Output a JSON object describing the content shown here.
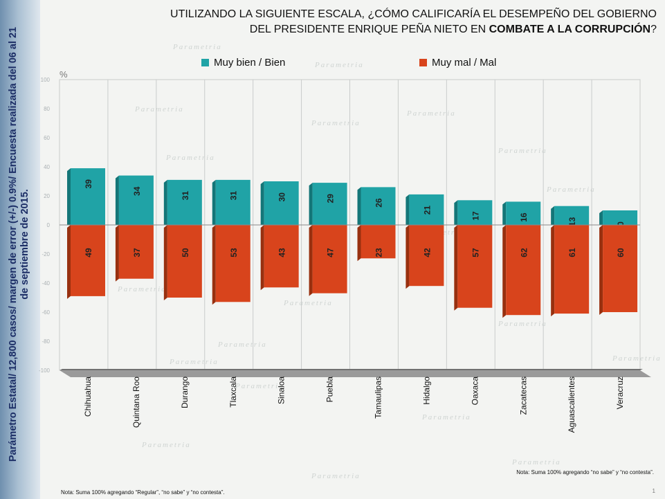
{
  "side_note": "Parámetro Estatal/ 12,800 casos/ margen de error (+/-) 0.9%/ Encuesta realizada del 06 al 21 de septiembre de 2015.",
  "title": {
    "line1": "UTILIZANDO LA SIGUIENTE ESCALA, ¿CÓMO CALIFICARÍA EL DESEMPEÑO DEL GOBIERNO",
    "line2_pre": "DEL PRESIDENTE ENRIQUE PEÑA NIETO EN ",
    "line2_bold": "COMBATE A LA CORRUPCIÓN",
    "line2_post": "?"
  },
  "notes": {
    "right": "Nota: Suma 100%  agregando “no sabe” y “no contesta”.",
    "bottom": "Nota: Suma 100% agregando “Regular”, “no sabe” y “no contesta”."
  },
  "page_number": "1",
  "watermark": "Parametria",
  "colors": {
    "positive": "#20a3a6",
    "positive_dark": "#147678",
    "negative": "#d8441c",
    "negative_dark": "#98300f",
    "floor": "#8a8a8a"
  },
  "chart_data": {
    "type": "bar",
    "title": "UTILIZANDO LA SIGUIENTE ESCALA, ¿CÓMO CALIFICARÍA EL DESEMPEÑO DEL GOBIERNO DEL PRESIDENTE ENRIQUE PEÑA NIETO EN COMBATE A LA CORRUPCIÓN?",
    "ylabel": "%",
    "ylim": [
      -100,
      100
    ],
    "yticks": [
      100,
      80,
      60,
      40,
      20,
      0,
      -20,
      -40,
      -60,
      -80,
      -100
    ],
    "categories": [
      "Chihuahua",
      "Quintana Roo",
      "Durango",
      "Tlaxcala",
      "Sinaloa",
      "Puebla",
      "Tamaulipas",
      "Hidalgo",
      "Oaxaca",
      "Zacatecas",
      "Aguascalientes",
      "Veracruz"
    ],
    "series": [
      {
        "name": "Muy bien / Bien",
        "values": [
          39,
          34,
          31,
          31,
          30,
          29,
          26,
          21,
          17,
          16,
          13,
          10
        ]
      },
      {
        "name": "Muy mal / Mal",
        "values": [
          49,
          37,
          50,
          53,
          43,
          47,
          23,
          42,
          57,
          62,
          61,
          60
        ]
      }
    ],
    "legend": "top"
  }
}
